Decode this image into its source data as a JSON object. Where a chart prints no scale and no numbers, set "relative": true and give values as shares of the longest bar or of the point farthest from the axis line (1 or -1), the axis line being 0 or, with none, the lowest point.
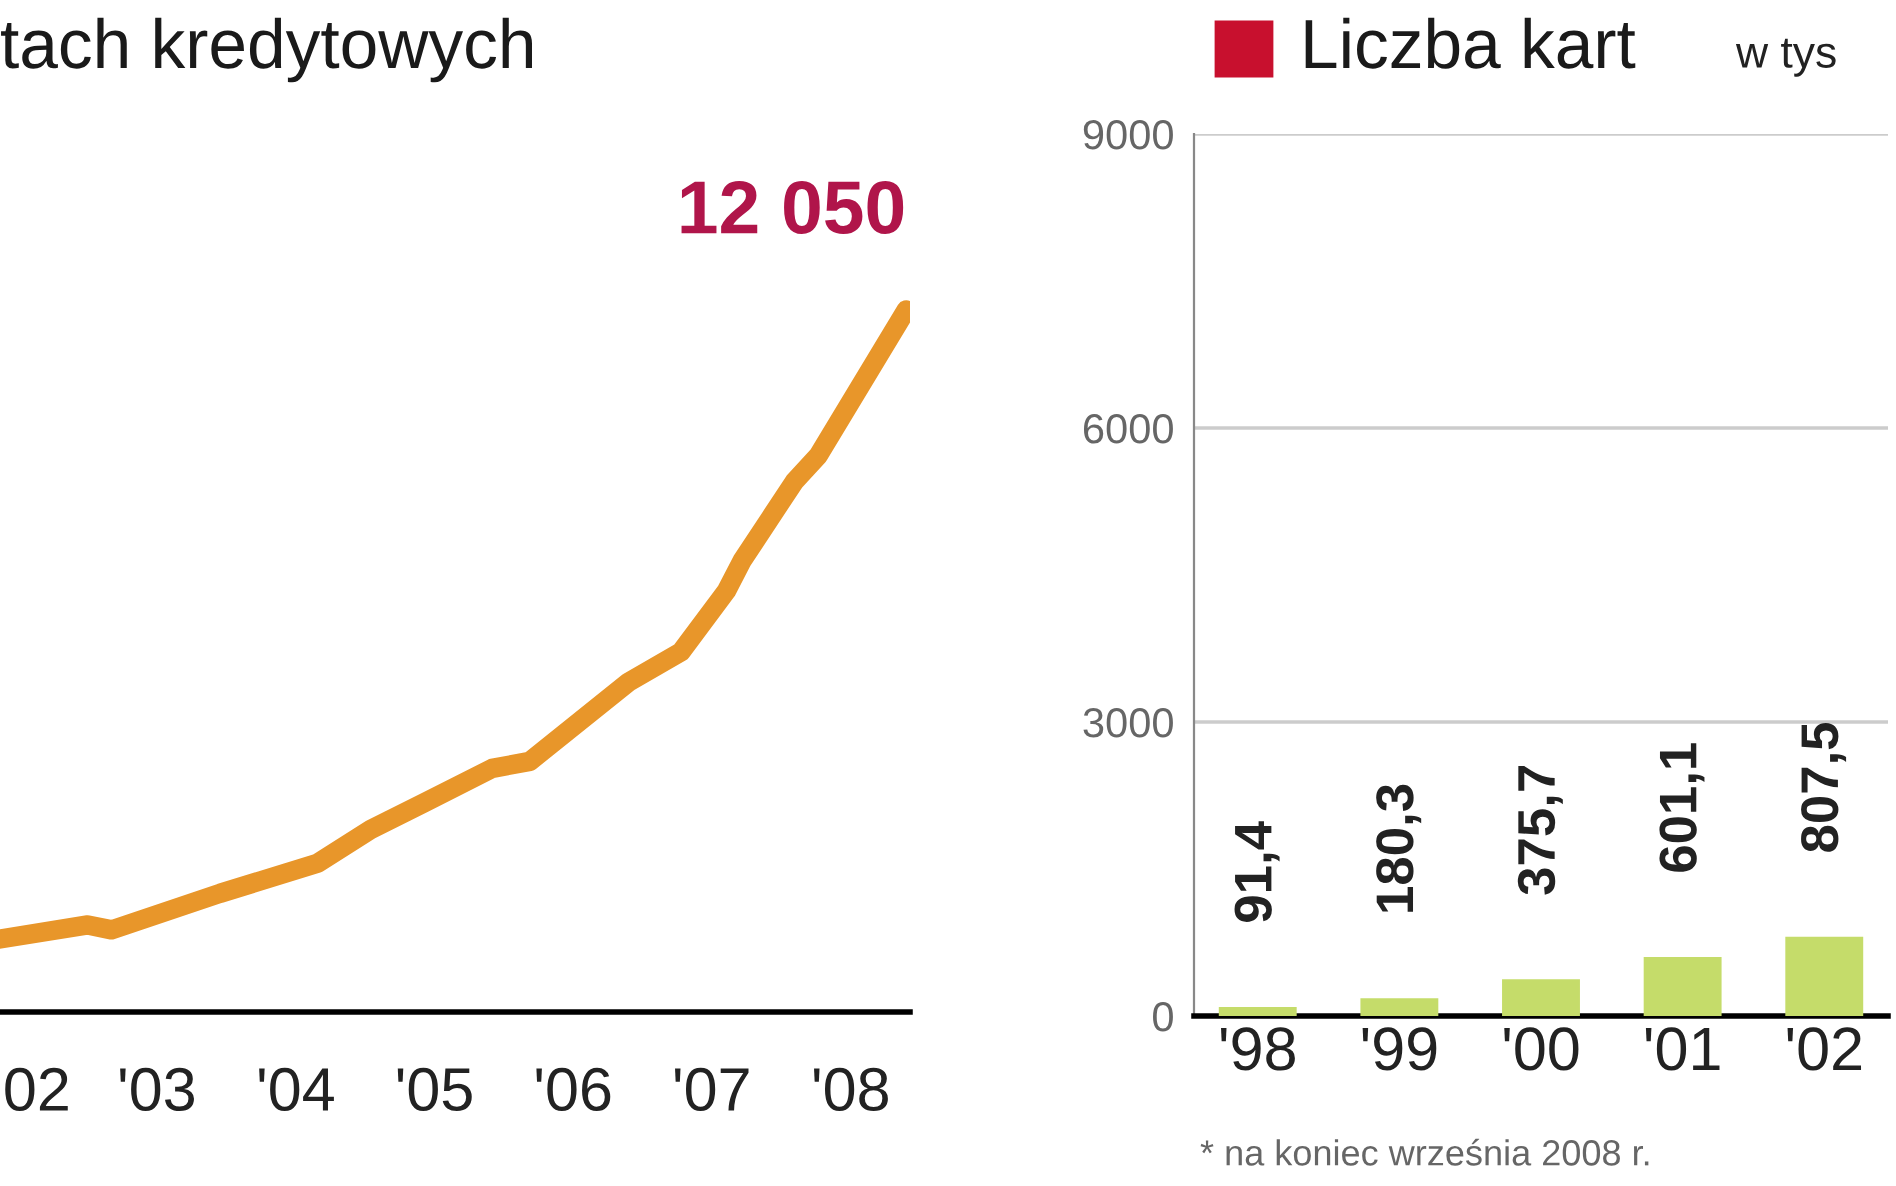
{
  "chart_data": [
    {
      "type": "line",
      "title": "tach kredytowych",
      "relative": true,
      "x": [
        "2002-05-15",
        "2003-01-01",
        "2003-03-05",
        "2003-12-15",
        "2004-08-28",
        "2005-01-15",
        "2005-06-05",
        "2005-12-01",
        "2006-03-10",
        "2006-11-25",
        "2007-04-12",
        "2007-08-10",
        "2007-09-20",
        "2008-02-05",
        "2008-04-08",
        "2008-11-25"
      ],
      "series": [
        {
          "color": "#e8962a",
          "values": [
            0.104,
            0.124,
            0.117,
            0.169,
            0.212,
            0.26,
            0.298,
            0.347,
            0.357,
            0.47,
            0.513,
            0.6,
            0.643,
            0.756,
            0.793,
            1.0
          ]
        }
      ],
      "xlim": [
        "2002-05-15",
        "2008-12-05"
      ],
      "xticks": [
        {
          "value": "2002-08-20",
          "label": "02"
        },
        {
          "value": "2003-07-02",
          "label": "'03"
        },
        {
          "value": "2004-07-02",
          "label": "'04"
        },
        {
          "value": "2005-07-02",
          "label": "'05"
        },
        {
          "value": "2006-07-02",
          "label": "'06"
        },
        {
          "value": "2007-07-02",
          "label": "'07"
        },
        {
          "value": "2008-07-02",
          "label": "'08"
        }
      ],
      "annotations": [
        {
          "text": "12 050",
          "x": "2008-11-25",
          "y": 1.0
        }
      ],
      "grid": false,
      "legend": false,
      "marker": "none",
      "line_style": "solid"
    },
    {
      "type": "bar",
      "title": "Liczba kart",
      "subtitle": "w tys",
      "categories": [
        "'98",
        "'99",
        "'00",
        "'01",
        "'02"
      ],
      "values": [
        91.4,
        180.3,
        375.7,
        601.1,
        807.5
      ],
      "color": "#c5dc6a",
      "value_labels": [
        "91,4",
        "180,3",
        "375,7",
        "601,1",
        "807,5"
      ],
      "ylim": [
        0,
        9000
      ],
      "yticks": [
        0,
        3000,
        6000,
        9000
      ],
      "grid": "y",
      "legend": false,
      "annotations": [
        "* na koniec września 2008 r."
      ]
    }
  ]
}
